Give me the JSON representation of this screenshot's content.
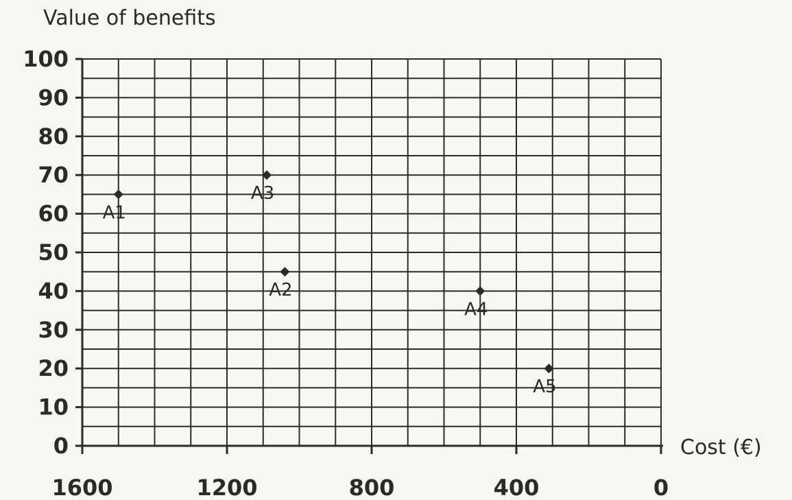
{
  "chart_data": {
    "type": "scatter",
    "title": "",
    "ylabel": "Value of benefits",
    "xlabel": "Cost (€)",
    "xlim": [
      1600,
      0
    ],
    "ylim": [
      0,
      100
    ],
    "x_reversed": true,
    "x_ticks": [
      1600,
      1200,
      800,
      400,
      0
    ],
    "y_ticks": [
      0,
      10,
      20,
      30,
      40,
      50,
      60,
      70,
      80,
      90,
      100
    ],
    "x_tick_labels": [
      "1600",
      "1200",
      "800",
      "400",
      "0"
    ],
    "y_tick_labels": [
      "0",
      "10",
      "20",
      "30",
      "40",
      "50",
      "60",
      "70",
      "80",
      "90",
      "100"
    ],
    "grid": true,
    "grid_minor_x_step": 100,
    "grid_minor_y_step": 5,
    "marker": "diamond",
    "marker_color": "#2a2a26",
    "points": [
      {
        "label": "A1",
        "x": 1500,
        "y": 65
      },
      {
        "label": "A2",
        "x": 1040,
        "y": 45
      },
      {
        "label": "A3",
        "x": 1090,
        "y": 70
      },
      {
        "label": "A4",
        "x": 500,
        "y": 40
      },
      {
        "label": "A5",
        "x": 310,
        "y": 20
      }
    ]
  }
}
